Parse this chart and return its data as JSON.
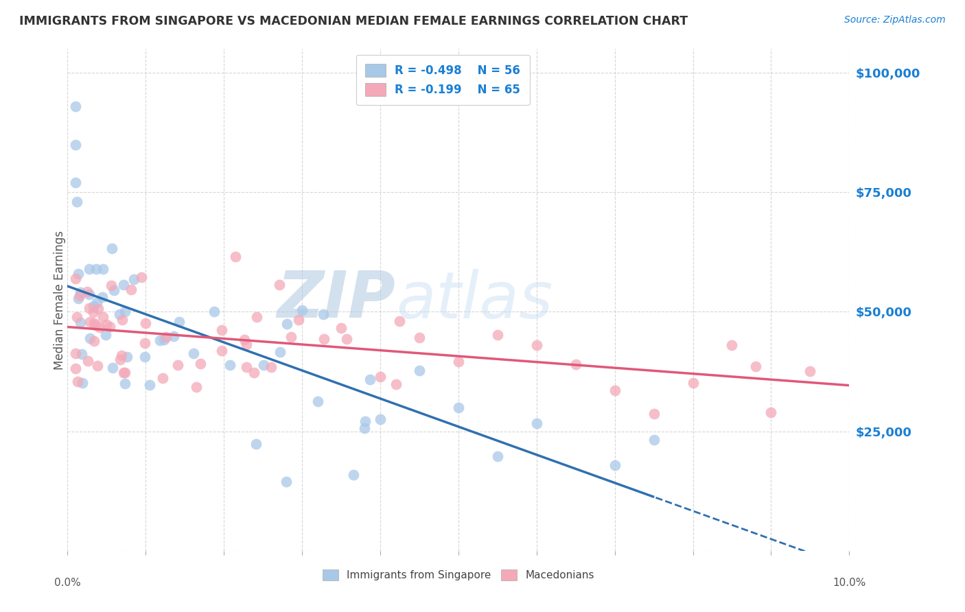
{
  "title": "IMMIGRANTS FROM SINGAPORE VS MACEDONIAN MEDIAN FEMALE EARNINGS CORRELATION CHART",
  "source": "Source: ZipAtlas.com",
  "ylabel": "Median Female Earnings",
  "yticks": [
    0,
    25000,
    50000,
    75000,
    100000
  ],
  "ytick_labels": [
    "",
    "$25,000",
    "$50,000",
    "$75,000",
    "$100,000"
  ],
  "xmin": 0.0,
  "xmax": 0.1,
  "ymin": 0,
  "ymax": 105000,
  "r1": "-0.498",
  "n1": "56",
  "r2": "-0.199",
  "n2": "65",
  "color_blue": "#a8c8e8",
  "color_pink": "#f4a8b8",
  "color_blue_line": "#3070b0",
  "color_pink_line": "#e05878",
  "watermark_zip": "ZIP",
  "watermark_atlas": "atlas",
  "legend_label1": "Immigrants from Singapore",
  "legend_label2": "Macedonians",
  "seed": 42
}
